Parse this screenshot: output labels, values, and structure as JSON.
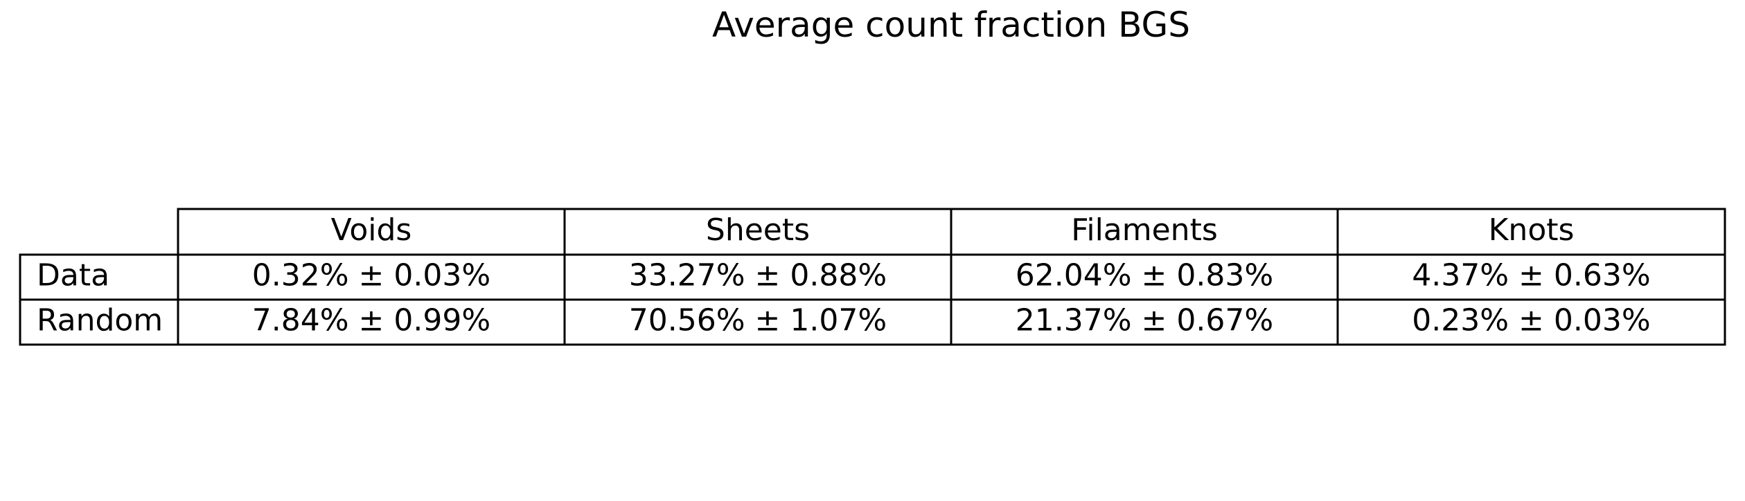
{
  "chart_data": {
    "type": "table",
    "title": "Average count fraction BGS",
    "column_headers": [
      "Voids",
      "Sheets",
      "Filaments",
      "Knots"
    ],
    "rows": [
      {
        "label": "Data",
        "cells": [
          "0.32% ± 0.03%",
          "33.27% ± 0.88%",
          "62.04% ± 0.83%",
          "4.37% ± 0.63%"
        ]
      },
      {
        "label": "Random",
        "cells": [
          "7.84% ± 0.99%",
          "70.56% ± 1.07%",
          "21.37% ± 0.67%",
          "0.23% ± 0.03%"
        ]
      }
    ],
    "values": {
      "Data": {
        "Voids": {
          "mean_percent": 0.32,
          "error_percent": 0.03
        },
        "Sheets": {
          "mean_percent": 33.27,
          "error_percent": 0.88
        },
        "Filaments": {
          "mean_percent": 62.04,
          "error_percent": 0.83
        },
        "Knots": {
          "mean_percent": 4.37,
          "error_percent": 0.63
        }
      },
      "Random": {
        "Voids": {
          "mean_percent": 7.84,
          "error_percent": 0.99
        },
        "Sheets": {
          "mean_percent": 70.56,
          "error_percent": 1.07
        },
        "Filaments": {
          "mean_percent": 21.37,
          "error_percent": 0.67
        },
        "Knots": {
          "mean_percent": 0.23,
          "error_percent": 0.03
        }
      }
    },
    "colors": {
      "background": "#ffffff",
      "line": "#000000",
      "text": "#000000"
    }
  }
}
